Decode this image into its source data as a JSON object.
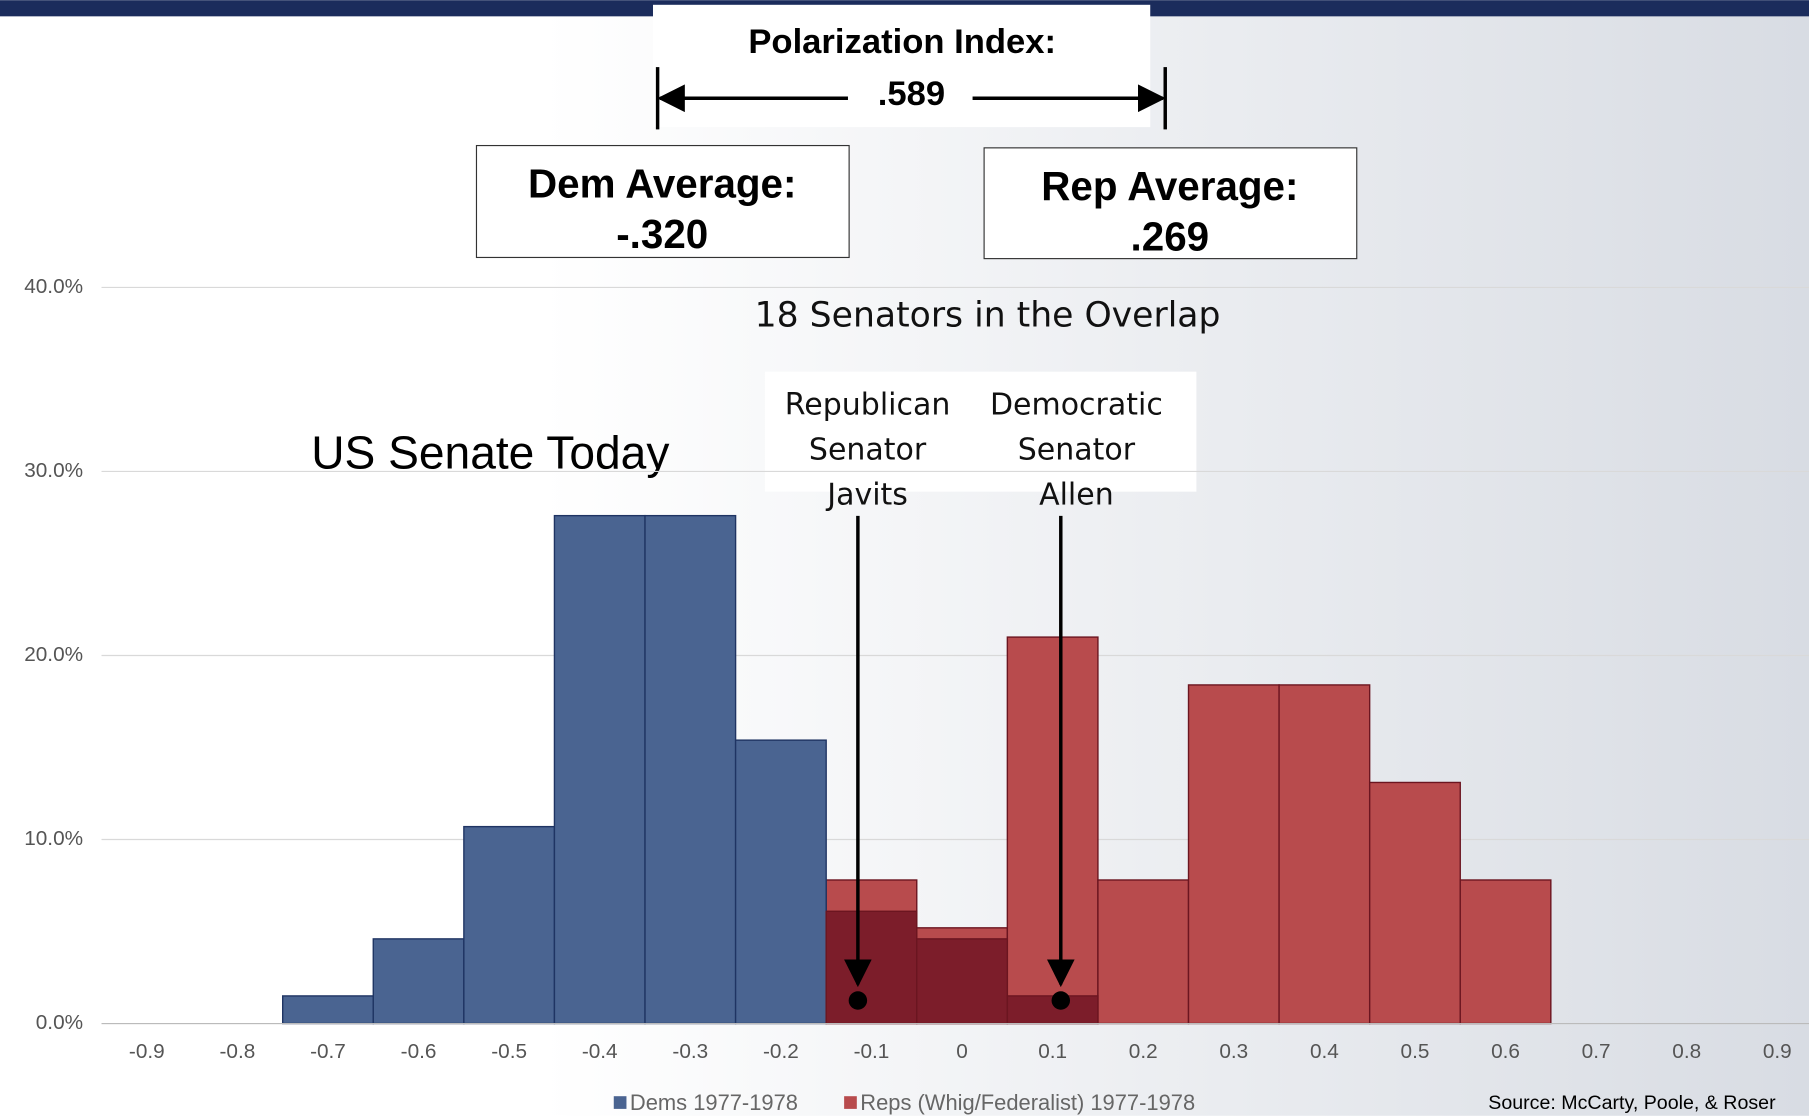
{
  "chart_data": {
    "type": "histogram",
    "title": "US Senate Today",
    "xticks": [
      -0.9,
      -0.8,
      -0.7,
      -0.6,
      -0.5,
      -0.4,
      -0.3,
      -0.2,
      -0.1,
      0,
      0.1,
      0.2,
      0.3,
      0.4,
      0.5,
      0.6,
      0.7,
      0.8,
      0.9
    ],
    "xlim": [
      -0.95,
      0.935
    ],
    "ylim": [
      0,
      40
    ],
    "yticks": [
      {
        "value": 0,
        "label": "0.0%"
      },
      {
        "value": 10,
        "label": "10.0%"
      },
      {
        "value": 20,
        "label": "20.0%"
      },
      {
        "value": 30,
        "label": "30.0%"
      },
      {
        "value": 40,
        "label": "40.0%"
      }
    ],
    "grid": true,
    "bins": [
      -0.75,
      -0.65,
      -0.55,
      -0.45,
      -0.35,
      -0.25,
      -0.15,
      -0.05,
      0.05,
      0.15,
      0.25,
      0.35,
      0.45,
      0.55,
      0.65
    ],
    "series": [
      {
        "name": "Reps (Whig/Federalist) 1977-1978",
        "color": "#b84b4d",
        "values": [
          0,
          0,
          0,
          0,
          0,
          0,
          7.8,
          5.2,
          21.0,
          7.8,
          18.4,
          18.4,
          13.1,
          7.8
        ]
      },
      {
        "name": "Dems 1977-1978",
        "color": "#4a6491",
        "values": [
          1.5,
          4.6,
          10.7,
          27.6,
          27.6,
          15.4,
          6.1,
          4.6,
          1.5,
          0,
          0,
          0,
          0,
          0
        ]
      }
    ],
    "legend_order": [
      1,
      0
    ],
    "overlap_color": "#7c1d2a",
    "polarization_label": "Polarization Index:",
    "polarization_value": ".589",
    "dem_average_label": "Dem Average:",
    "dem_average_value": "-.320",
    "rep_average_label": "Rep Average:",
    "rep_average_value": ".269",
    "overlap_note": "18 Senators in the Overlap",
    "markers": [
      {
        "label": [
          "Republican",
          "Senator",
          "Javits"
        ],
        "x": -0.115,
        "y": 1.25
      },
      {
        "label": [
          "Democratic",
          "Senator",
          "Allen"
        ],
        "x": 0.109,
        "y": 1.25
      }
    ],
    "source": "Source:  McCarty, Poole, & Roser"
  }
}
